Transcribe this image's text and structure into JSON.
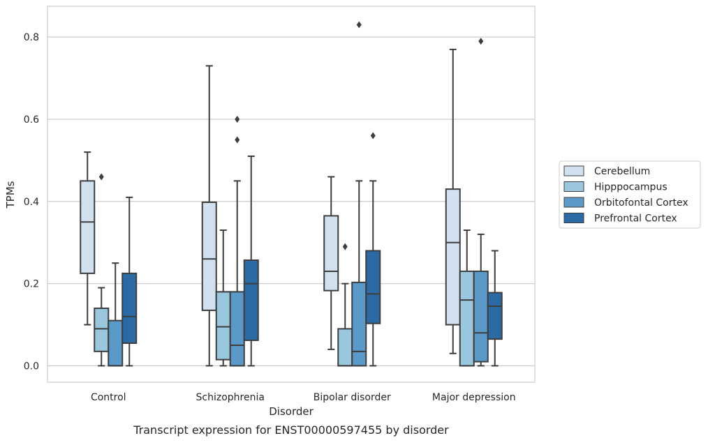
{
  "chart_data": {
    "type": "boxplot",
    "title": "Transcript expression for ENST00000597455 by disorder",
    "xlabel": "Disorder",
    "ylabel": "TPMs",
    "ylim": [
      -0.04,
      0.875
    ],
    "yticks": [
      "0.0",
      "0.2",
      "0.4",
      "0.6",
      "0.8"
    ],
    "grid": "horizontal",
    "legend_position": "right",
    "categories": [
      "Control",
      "Schizophrenia",
      "Bipolar disorder",
      "Major depression"
    ],
    "series": [
      {
        "name": "Cerebellum",
        "color": "#d1e1f0",
        "boxes": [
          {
            "whislo": 0.1,
            "q1": 0.225,
            "med": 0.35,
            "q3": 0.45,
            "whishi": 0.52,
            "fliers": []
          },
          {
            "whislo": 0.0,
            "q1": 0.135,
            "med": 0.26,
            "q3": 0.398,
            "whishi": 0.73,
            "fliers": []
          },
          {
            "whislo": 0.04,
            "q1": 0.183,
            "med": 0.23,
            "q3": 0.365,
            "whishi": 0.46,
            "fliers": []
          },
          {
            "whislo": 0.03,
            "q1": 0.1,
            "med": 0.3,
            "q3": 0.43,
            "whishi": 0.77,
            "fliers": []
          }
        ]
      },
      {
        "name": "Hipppocampus",
        "color": "#9ac6de",
        "boxes": [
          {
            "whislo": 0.0,
            "q1": 0.035,
            "med": 0.09,
            "q3": 0.14,
            "whishi": 0.19,
            "fliers": [
              0.46
            ]
          },
          {
            "whislo": 0.0,
            "q1": 0.015,
            "med": 0.095,
            "q3": 0.18,
            "whishi": 0.33,
            "fliers": []
          },
          {
            "whislo": 0.0,
            "q1": 0.0,
            "med": 0.0,
            "q3": 0.09,
            "whishi": 0.2,
            "fliers": [
              0.29
            ]
          },
          {
            "whislo": 0.0,
            "q1": 0.0,
            "med": 0.16,
            "q3": 0.23,
            "whishi": 0.33,
            "fliers": []
          }
        ]
      },
      {
        "name": "Orbitofontal Cortex",
        "color": "#5b9ac8",
        "boxes": [
          {
            "whislo": 0.0,
            "q1": 0.0,
            "med": 0.0,
            "q3": 0.11,
            "whishi": 0.25,
            "fliers": []
          },
          {
            "whislo": 0.0,
            "q1": 0.0,
            "med": 0.05,
            "q3": 0.18,
            "whishi": 0.45,
            "fliers": [
              0.55,
              0.6
            ]
          },
          {
            "whislo": 0.0,
            "q1": 0.0,
            "med": 0.035,
            "q3": 0.203,
            "whishi": 0.45,
            "fliers": [
              0.83
            ]
          },
          {
            "whislo": 0.0,
            "q1": 0.01,
            "med": 0.08,
            "q3": 0.23,
            "whishi": 0.32,
            "fliers": [
              0.79
            ]
          }
        ]
      },
      {
        "name": "Prefrontal Cortex",
        "color": "#2c6aa6",
        "boxes": [
          {
            "whislo": 0.0,
            "q1": 0.055,
            "med": 0.12,
            "q3": 0.225,
            "whishi": 0.41,
            "fliers": []
          },
          {
            "whislo": 0.0,
            "q1": 0.062,
            "med": 0.2,
            "q3": 0.257,
            "whishi": 0.51,
            "fliers": []
          },
          {
            "whislo": 0.0,
            "q1": 0.103,
            "med": 0.175,
            "q3": 0.28,
            "whishi": 0.45,
            "fliers": [
              0.56
            ]
          },
          {
            "whislo": 0.0,
            "q1": 0.065,
            "med": 0.145,
            "q3": 0.178,
            "whishi": 0.28,
            "fliers": []
          }
        ]
      }
    ]
  }
}
